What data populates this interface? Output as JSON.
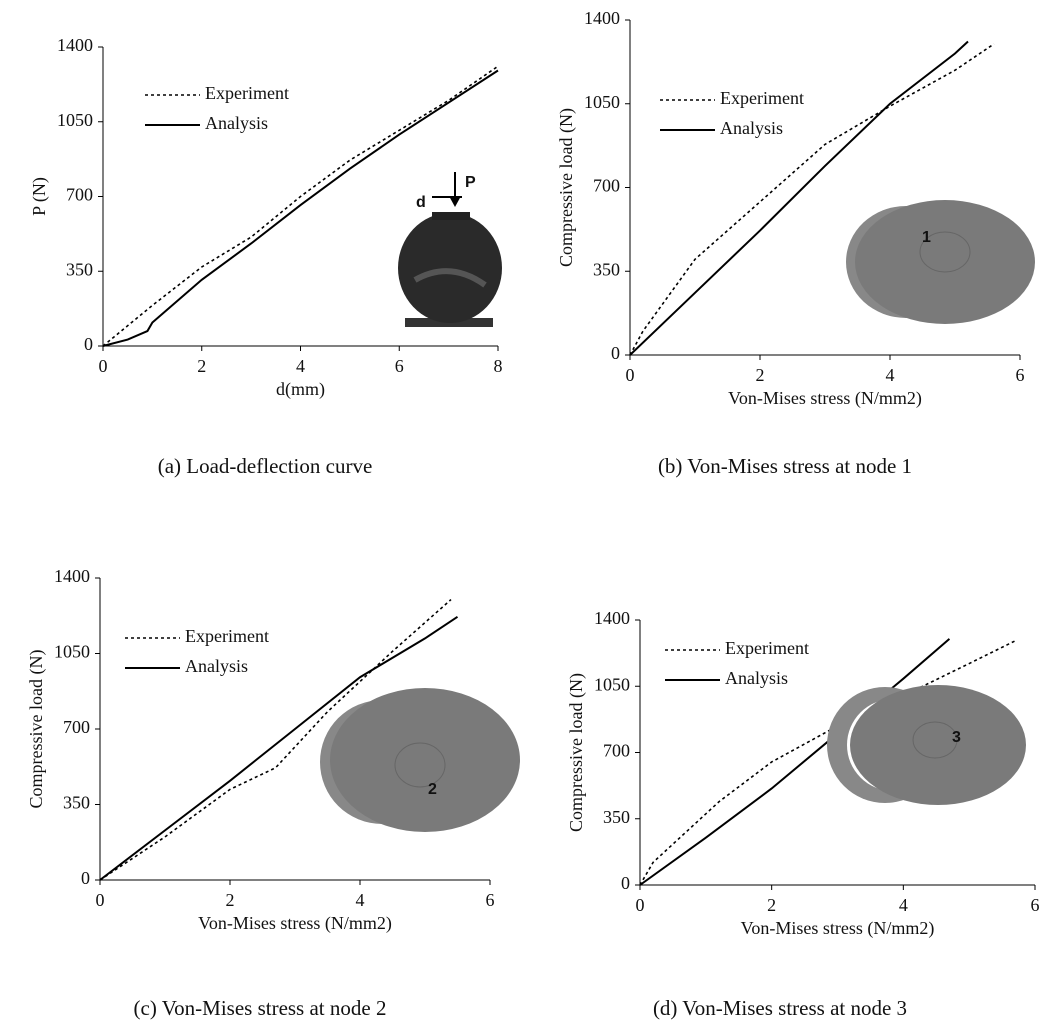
{
  "chart_data": [
    {
      "type": "line",
      "caption": "(a) Load-deflection curve",
      "xlabel": "d(mm)",
      "ylabel": "P (N)",
      "xlim": [
        0,
        8
      ],
      "ylim": [
        0,
        1400
      ],
      "xticks": [
        0,
        2,
        4,
        6,
        8
      ],
      "yticks": [
        0,
        350,
        700,
        1050,
        1400
      ],
      "annotations": [
        "P",
        "d"
      ],
      "series": [
        {
          "name": "Experiment",
          "color": "#000000",
          "dash": "dotted",
          "x": [
            0,
            1,
            2,
            3,
            4,
            5,
            6,
            7,
            8
          ],
          "values": [
            0,
            190,
            370,
            510,
            700,
            870,
            1010,
            1150,
            1310
          ]
        },
        {
          "name": "Analysis",
          "color": "#000000",
          "dash": "solid",
          "x": [
            0,
            0.5,
            0.9,
            1,
            2,
            3,
            4,
            5,
            6,
            7,
            8
          ],
          "values": [
            0,
            30,
            70,
            110,
            310,
            480,
            660,
            830,
            990,
            1140,
            1290
          ]
        }
      ]
    },
    {
      "type": "line",
      "caption": "(b) Von-Mises stress at node 1",
      "xlabel": "Von-Mises stress (N/mm2)",
      "ylabel": "Compressive load (N)",
      "xlim": [
        0,
        6
      ],
      "ylim": [
        0,
        1400
      ],
      "xticks": [
        0,
        2,
        4,
        6
      ],
      "yticks": [
        0,
        350,
        700,
        1050,
        1400
      ],
      "annotations": [
        "1"
      ],
      "series": [
        {
          "name": "Experiment",
          "color": "#000000",
          "dash": "dotted",
          "x": [
            0,
            0.2,
            1,
            2,
            3,
            4,
            5,
            5.6
          ],
          "values": [
            0,
            100,
            400,
            640,
            880,
            1040,
            1190,
            1300
          ]
        },
        {
          "name": "Analysis",
          "color": "#000000",
          "dash": "solid",
          "x": [
            0,
            1,
            2,
            3,
            4,
            5,
            5.2
          ],
          "values": [
            0,
            260,
            520,
            790,
            1050,
            1260,
            1310
          ]
        }
      ]
    },
    {
      "type": "line",
      "caption": "(c) Von-Mises stress at node 2",
      "xlabel": "Von-Mises stress (N/mm2)",
      "ylabel": "Compressive load (N)",
      "xlim": [
        0,
        6
      ],
      "ylim": [
        0,
        1400
      ],
      "xticks": [
        0,
        2,
        4,
        6
      ],
      "yticks": [
        0,
        350,
        700,
        1050,
        1400
      ],
      "annotations": [
        "2"
      ],
      "series": [
        {
          "name": "Experiment",
          "color": "#000000",
          "dash": "dotted",
          "x": [
            0,
            1,
            2,
            2.7,
            3.5,
            4.5,
            5.4
          ],
          "values": [
            0,
            200,
            420,
            520,
            780,
            1060,
            1300
          ]
        },
        {
          "name": "Analysis",
          "color": "#000000",
          "dash": "solid",
          "x": [
            0,
            1,
            2,
            3,
            4,
            5,
            5.5
          ],
          "values": [
            0,
            230,
            460,
            700,
            940,
            1120,
            1220
          ]
        }
      ]
    },
    {
      "type": "line",
      "caption": "(d) Von-Mises stress at node 3",
      "xlabel": "Von-Mises stress (N/mm2)",
      "ylabel": "Compressive load (N)",
      "xlim": [
        0,
        6
      ],
      "ylim": [
        0,
        1400
      ],
      "xticks": [
        0,
        2,
        4,
        6
      ],
      "yticks": [
        0,
        350,
        700,
        1050,
        1400
      ],
      "annotations": [
        "3"
      ],
      "series": [
        {
          "name": "Experiment",
          "color": "#000000",
          "dash": "dotted",
          "x": [
            0,
            0.2,
            1.2,
            2,
            3,
            4,
            5,
            5.7
          ],
          "values": [
            0,
            120,
            440,
            650,
            840,
            1000,
            1170,
            1290
          ]
        },
        {
          "name": "Analysis",
          "color": "#000000",
          "dash": "solid",
          "x": [
            0,
            1,
            2,
            3,
            4,
            4.7
          ],
          "values": [
            0,
            250,
            510,
            800,
            1090,
            1300
          ]
        }
      ]
    }
  ]
}
